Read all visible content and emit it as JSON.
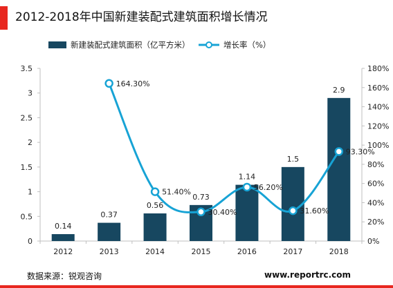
{
  "title": "2012-2018年中国新建装配式建筑面积增长情况",
  "colors": {
    "accent": "#e8271f",
    "bar": "#174760",
    "line": "#17a3d5",
    "axis": "#bfbfbf"
  },
  "legend": {
    "bar_label": "新建装配式建筑面积（亿平方米）",
    "line_label": "增长率（%）"
  },
  "footer": {
    "source": "数据来源：锐观咨询",
    "site": "www.reportrc.com"
  },
  "chart_data": {
    "type": "bar",
    "categories": [
      "2012",
      "2013",
      "2014",
      "2015",
      "2016",
      "2017",
      "2018"
    ],
    "series": [
      {
        "type": "bar",
        "axis": "left",
        "values": [
          0.14,
          0.37,
          0.56,
          0.73,
          1.14,
          1.5,
          2.9
        ],
        "labels": [
          "0.14",
          "0.37",
          "0.56",
          "0.73",
          "1.14",
          "1.5",
          "2.9"
        ]
      },
      {
        "type": "line",
        "axis": "right",
        "values": [
          null,
          164.3,
          51.4,
          30.4,
          56.2,
          31.6,
          93.3
        ],
        "labels": [
          "",
          "164.30%",
          "51.40%",
          "30.40%",
          "56.20%",
          "31.60%",
          "93.30%"
        ]
      }
    ],
    "y_left": {
      "ylim": [
        0,
        3.5
      ],
      "ticks": [
        "0",
        "0.5",
        "1",
        "1.5",
        "2",
        "2.5",
        "3",
        "3.5"
      ]
    },
    "y_right": {
      "ylim": [
        0,
        180
      ],
      "ticks": [
        "0%",
        "20%",
        "40%",
        "60%",
        "80%",
        "100%",
        "120%",
        "140%",
        "160%",
        "180%"
      ]
    },
    "grid": false,
    "legend_position": "top"
  }
}
